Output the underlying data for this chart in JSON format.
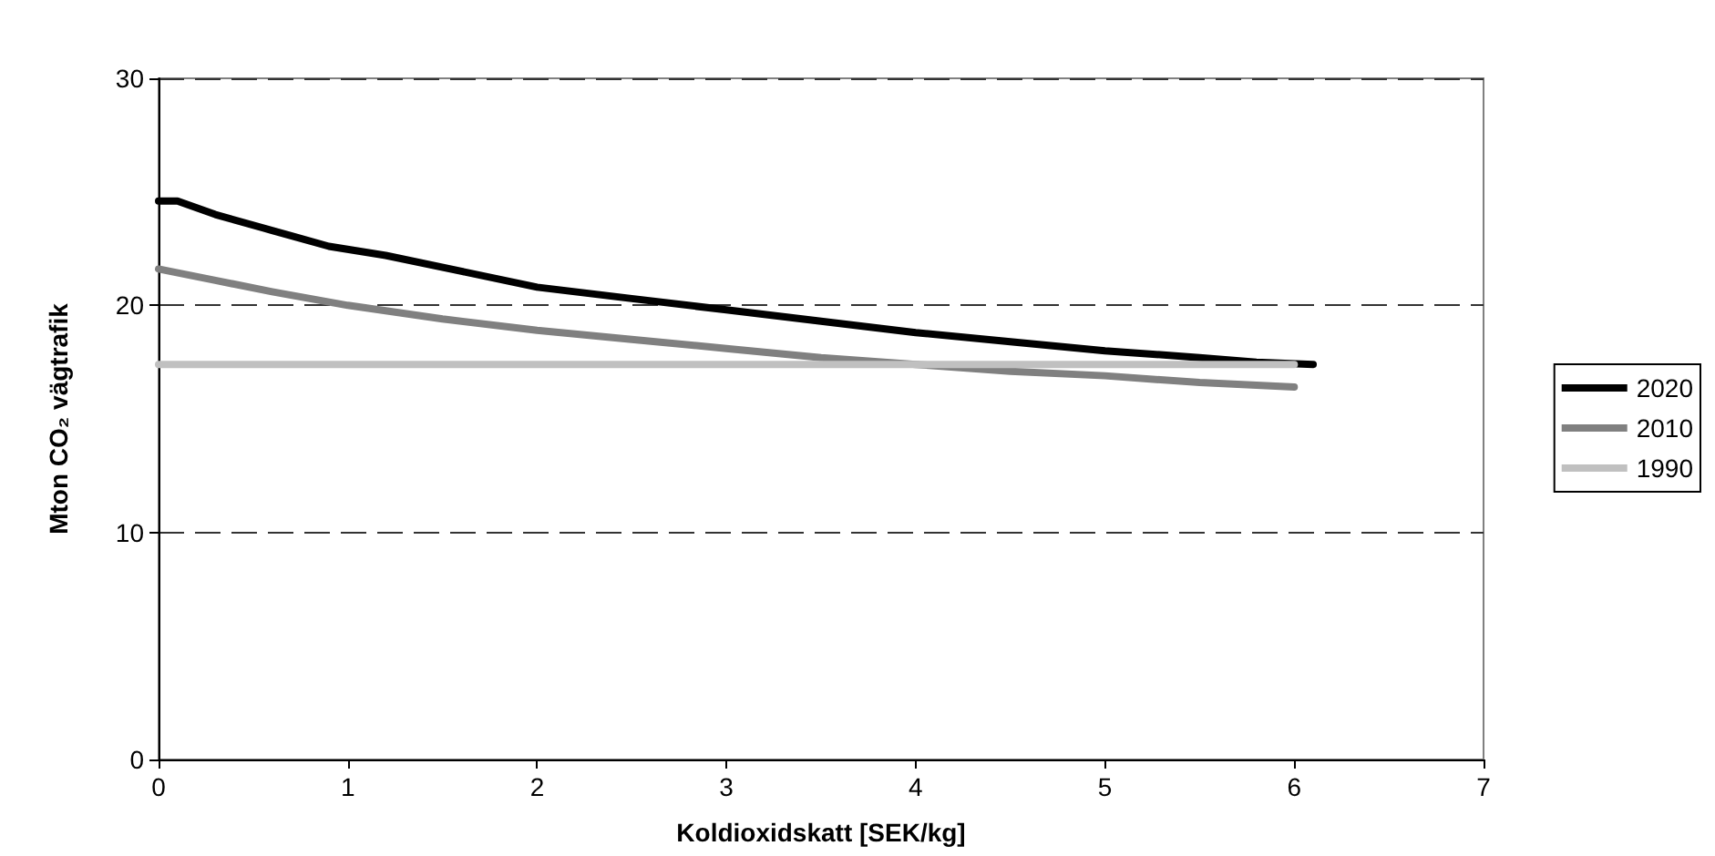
{
  "chart_data": {
    "type": "line",
    "xlabel": "Koldioxidskatt [SEK/kg]",
    "ylabel": "Mton CO₂ vägtrafik",
    "xlim": [
      0,
      7
    ],
    "xticks": [
      0,
      1,
      2,
      3,
      4,
      5,
      6,
      7
    ],
    "ylim": [
      0,
      30
    ],
    "yticks": [
      0,
      10,
      20,
      30
    ],
    "grid": "y",
    "legend": "right",
    "marker": "none",
    "line_style": "solid",
    "series": [
      {
        "name": "2020",
        "color": "#000000",
        "x": [
          0,
          0.1,
          0.3,
          0.6,
          0.9,
          1.2,
          1.6,
          2,
          2.5,
          3,
          3.5,
          4,
          4.5,
          5,
          5.5,
          5.8,
          6.1
        ],
        "values": [
          24.6,
          24.6,
          24.0,
          23.3,
          22.6,
          22.2,
          21.5,
          20.8,
          20.3,
          19.8,
          19.3,
          18.8,
          18.4,
          18.0,
          17.7,
          17.5,
          17.4
        ]
      },
      {
        "name": "2010",
        "color": "#808080",
        "x": [
          0,
          0.3,
          0.6,
          1,
          1.5,
          2,
          2.5,
          3,
          3.5,
          4,
          4.5,
          5,
          5.5,
          6
        ],
        "values": [
          21.6,
          21.1,
          20.6,
          20.0,
          19.4,
          18.9,
          18.5,
          18.1,
          17.7,
          17.4,
          17.1,
          16.9,
          16.6,
          16.4
        ]
      },
      {
        "name": "1990",
        "color": "#c0c0c0",
        "x": [
          0,
          1,
          2,
          3,
          4,
          5,
          6
        ],
        "values": [
          17.4,
          17.4,
          17.4,
          17.4,
          17.4,
          17.4,
          17.4
        ]
      }
    ]
  }
}
